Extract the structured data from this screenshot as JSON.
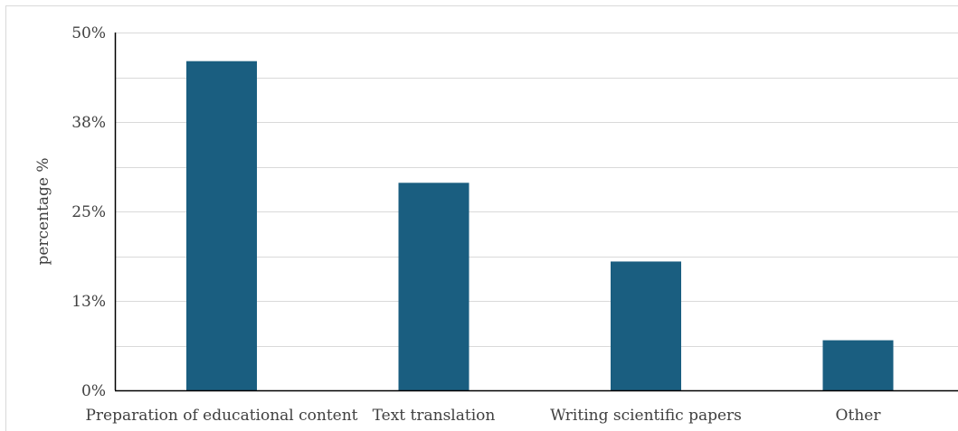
{
  "chart_data": {
    "type": "bar",
    "categories": [
      "Preparation of educational content",
      "Text translation",
      "Writing scientific papers",
      "Other"
    ],
    "values": [
      46,
      29,
      18,
      7
    ],
    "ylabel": "percentage %",
    "xlabel": "",
    "ylim": [
      0,
      50
    ],
    "yticks": [
      0,
      12.5,
      25,
      37.5,
      50
    ],
    "ytick_labels": [
      "0%",
      "13%",
      "25%",
      "38%",
      "50%"
    ],
    "grid": "horizontal",
    "bar_color": "#1a5e80",
    "gridline_color": "#d9d9d9"
  }
}
